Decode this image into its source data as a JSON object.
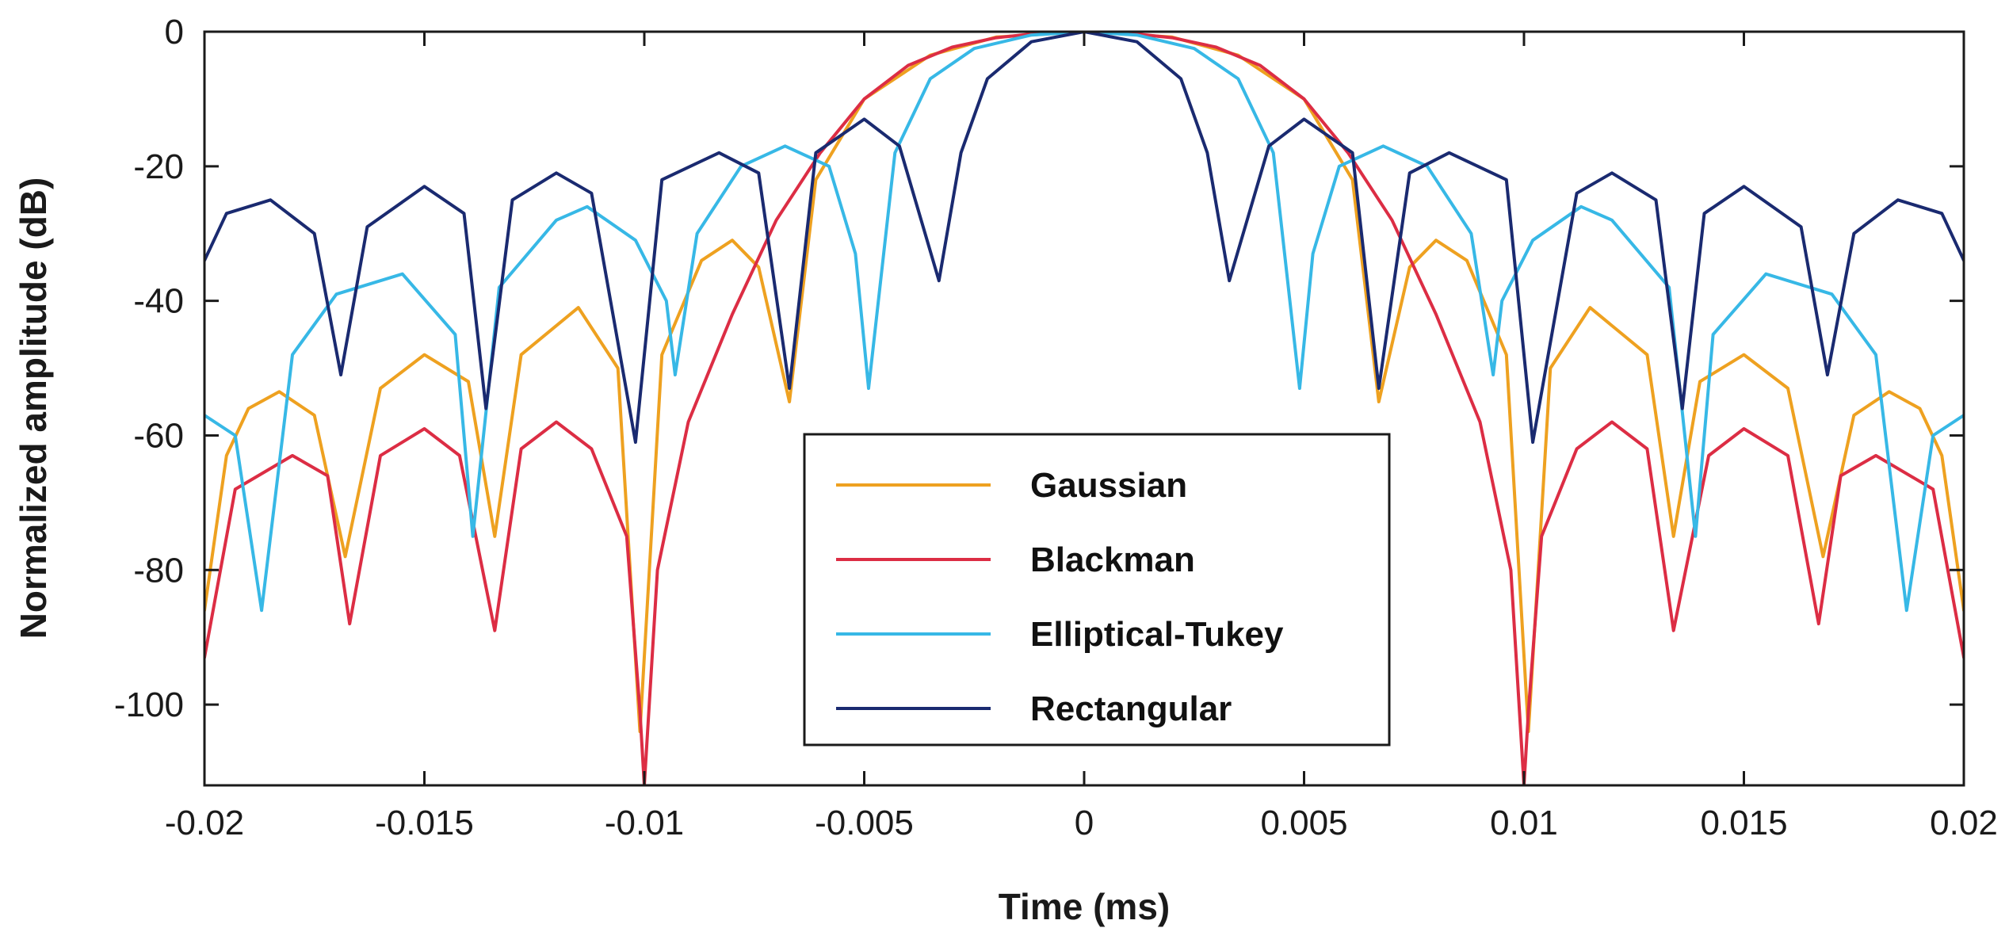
{
  "chart_data": {
    "type": "line",
    "title": "",
    "xlabel": "Time (ms)",
    "ylabel": "Normalized amplitude (dB)",
    "xlim": [
      -0.02,
      0.02
    ],
    "ylim": [
      -112,
      0
    ],
    "xticks": [
      -0.02,
      -0.015,
      -0.01,
      -0.005,
      0,
      0.005,
      0.01,
      0.015,
      0.02
    ],
    "xtick_labels": [
      "-0.02",
      "-0.015",
      "-0.01",
      "-0.005",
      "0",
      "0.005",
      "0.01",
      "0.015",
      "0.02"
    ],
    "yticks": [
      0,
      -20,
      -40,
      -60,
      -80,
      -100
    ],
    "ytick_labels": [
      "0",
      "-20",
      "-40",
      "-60",
      "-80",
      "-100"
    ],
    "grid": false,
    "legend_position": "lower-center",
    "series": [
      {
        "name": "Gaussian",
        "color": "#EEA120",
        "points": [
          [
            -0.02,
            -86
          ],
          [
            -0.0195,
            -63
          ],
          [
            -0.019,
            -56
          ],
          [
            -0.0183,
            -53.5
          ],
          [
            -0.0175,
            -57
          ],
          [
            -0.0168,
            -78
          ],
          [
            -0.016,
            -53
          ],
          [
            -0.015,
            -48
          ],
          [
            -0.014,
            -52
          ],
          [
            -0.0134,
            -75
          ],
          [
            -0.0128,
            -48
          ],
          [
            -0.0115,
            -41
          ],
          [
            -0.0106,
            -50
          ],
          [
            -0.0101,
            -104
          ],
          [
            -0.0096,
            -48
          ],
          [
            -0.0087,
            -34
          ],
          [
            -0.008,
            -31
          ],
          [
            -0.0074,
            -35
          ],
          [
            -0.0067,
            -55
          ],
          [
            -0.0061,
            -22
          ],
          [
            -0.005,
            -10
          ],
          [
            -0.0035,
            -3.5
          ],
          [
            -0.002,
            -0.8
          ],
          [
            0,
            0
          ],
          [
            0.002,
            -0.8
          ],
          [
            0.0035,
            -3.5
          ],
          [
            0.005,
            -10
          ],
          [
            0.0061,
            -22
          ],
          [
            0.0067,
            -55
          ],
          [
            0.0074,
            -35
          ],
          [
            0.008,
            -31
          ],
          [
            0.0087,
            -34
          ],
          [
            0.0096,
            -48
          ],
          [
            0.0101,
            -104
          ],
          [
            0.0106,
            -50
          ],
          [
            0.0115,
            -41
          ],
          [
            0.0128,
            -48
          ],
          [
            0.0134,
            -75
          ],
          [
            0.014,
            -52
          ],
          [
            0.015,
            -48
          ],
          [
            0.016,
            -53
          ],
          [
            0.0168,
            -78
          ],
          [
            0.0175,
            -57
          ],
          [
            0.0183,
            -53.5
          ],
          [
            0.019,
            -56
          ],
          [
            0.0195,
            -63
          ],
          [
            0.02,
            -86
          ]
        ]
      },
      {
        "name": "Blackman",
        "color": "#DC2D44",
        "points": [
          [
            -0.02,
            -93
          ],
          [
            -0.0193,
            -68
          ],
          [
            -0.018,
            -63
          ],
          [
            -0.0172,
            -66
          ],
          [
            -0.0167,
            -88
          ],
          [
            -0.016,
            -63
          ],
          [
            -0.015,
            -59
          ],
          [
            -0.0142,
            -63
          ],
          [
            -0.0134,
            -89
          ],
          [
            -0.0128,
            -62
          ],
          [
            -0.012,
            -58
          ],
          [
            -0.0112,
            -62
          ],
          [
            -0.0104,
            -75
          ],
          [
            -0.0101,
            -101
          ],
          [
            -0.01,
            -112
          ],
          [
            -0.0097,
            -80
          ],
          [
            -0.009,
            -58
          ],
          [
            -0.008,
            -42
          ],
          [
            -0.007,
            -28
          ],
          [
            -0.006,
            -18
          ],
          [
            -0.005,
            -10
          ],
          [
            -0.004,
            -5
          ],
          [
            -0.003,
            -2.3
          ],
          [
            -0.002,
            -0.9
          ],
          [
            -0.001,
            -0.2
          ],
          [
            0,
            0
          ],
          [
            0.001,
            -0.2
          ],
          [
            0.002,
            -0.9
          ],
          [
            0.003,
            -2.3
          ],
          [
            0.004,
            -5
          ],
          [
            0.005,
            -10
          ],
          [
            0.006,
            -18
          ],
          [
            0.007,
            -28
          ],
          [
            0.008,
            -42
          ],
          [
            0.009,
            -58
          ],
          [
            0.0097,
            -80
          ],
          [
            0.01,
            -112
          ],
          [
            0.0101,
            -101
          ],
          [
            0.0104,
            -75
          ],
          [
            0.0112,
            -62
          ],
          [
            0.012,
            -58
          ],
          [
            0.0128,
            -62
          ],
          [
            0.0134,
            -89
          ],
          [
            0.0142,
            -63
          ],
          [
            0.015,
            -59
          ],
          [
            0.016,
            -63
          ],
          [
            0.0167,
            -88
          ],
          [
            0.0172,
            -66
          ],
          [
            0.018,
            -63
          ],
          [
            0.0193,
            -68
          ],
          [
            0.02,
            -93
          ]
        ]
      },
      {
        "name": "Elliptical-Tukey",
        "color": "#37B8E6",
        "points": [
          [
            -0.02,
            -57
          ],
          [
            -0.0193,
            -60
          ],
          [
            -0.0187,
            -86
          ],
          [
            -0.018,
            -48
          ],
          [
            -0.017,
            -39
          ],
          [
            -0.0155,
            -36
          ],
          [
            -0.0143,
            -45
          ],
          [
            -0.0139,
            -75
          ],
          [
            -0.0133,
            -38
          ],
          [
            -0.012,
            -28
          ],
          [
            -0.0113,
            -26
          ],
          [
            -0.0102,
            -31
          ],
          [
            -0.0095,
            -40
          ],
          [
            -0.0093,
            -51
          ],
          [
            -0.0088,
            -30
          ],
          [
            -0.0078,
            -20
          ],
          [
            -0.0068,
            -17
          ],
          [
            -0.0058,
            -20
          ],
          [
            -0.0052,
            -33
          ],
          [
            -0.0049,
            -53
          ],
          [
            -0.0043,
            -18
          ],
          [
            -0.0035,
            -7
          ],
          [
            -0.0025,
            -2.5
          ],
          [
            -0.0012,
            -0.5
          ],
          [
            0,
            0
          ],
          [
            0.0012,
            -0.5
          ],
          [
            0.0025,
            -2.5
          ],
          [
            0.0035,
            -7
          ],
          [
            0.0043,
            -18
          ],
          [
            0.0049,
            -53
          ],
          [
            0.0052,
            -33
          ],
          [
            0.0058,
            -20
          ],
          [
            0.0068,
            -17
          ],
          [
            0.0078,
            -20
          ],
          [
            0.0088,
            -30
          ],
          [
            0.0093,
            -51
          ],
          [
            0.0095,
            -40
          ],
          [
            0.0102,
            -31
          ],
          [
            0.0113,
            -26
          ],
          [
            0.012,
            -28
          ],
          [
            0.0133,
            -38
          ],
          [
            0.0139,
            -75
          ],
          [
            0.0143,
            -45
          ],
          [
            0.0155,
            -36
          ],
          [
            0.017,
            -39
          ],
          [
            0.018,
            -48
          ],
          [
            0.0187,
            -86
          ],
          [
            0.0193,
            -60
          ],
          [
            0.02,
            -57
          ]
        ]
      },
      {
        "name": "Rectangular",
        "color": "#1A2A70",
        "points": [
          [
            -0.02,
            -34
          ],
          [
            -0.0195,
            -27
          ],
          [
            -0.0185,
            -25
          ],
          [
            -0.0175,
            -30
          ],
          [
            -0.0169,
            -51
          ],
          [
            -0.0163,
            -29
          ],
          [
            -0.015,
            -23
          ],
          [
            -0.0141,
            -27
          ],
          [
            -0.0136,
            -56
          ],
          [
            -0.013,
            -25
          ],
          [
            -0.012,
            -21
          ],
          [
            -0.0112,
            -24
          ],
          [
            -0.0102,
            -61
          ],
          [
            -0.0096,
            -22
          ],
          [
            -0.0083,
            -18
          ],
          [
            -0.0074,
            -21
          ],
          [
            -0.0067,
            -53
          ],
          [
            -0.0061,
            -18
          ],
          [
            -0.005,
            -13
          ],
          [
            -0.0042,
            -17
          ],
          [
            -0.0033,
            -37
          ],
          [
            -0.0028,
            -18
          ],
          [
            -0.0022,
            -7
          ],
          [
            -0.0012,
            -1.5
          ],
          [
            0,
            0
          ],
          [
            0.0012,
            -1.5
          ],
          [
            0.0022,
            -7
          ],
          [
            0.0028,
            -18
          ],
          [
            0.0033,
            -37
          ],
          [
            0.0042,
            -17
          ],
          [
            0.005,
            -13
          ],
          [
            0.0061,
            -18
          ],
          [
            0.0067,
            -53
          ],
          [
            0.0074,
            -21
          ],
          [
            0.0083,
            -18
          ],
          [
            0.0096,
            -22
          ],
          [
            0.0102,
            -61
          ],
          [
            0.0112,
            -24
          ],
          [
            0.012,
            -21
          ],
          [
            0.013,
            -25
          ],
          [
            0.0136,
            -56
          ],
          [
            0.0141,
            -27
          ],
          [
            0.015,
            -23
          ],
          [
            0.0163,
            -29
          ],
          [
            0.0169,
            -51
          ],
          [
            0.0175,
            -30
          ],
          [
            0.0185,
            -25
          ],
          [
            0.0195,
            -27
          ],
          [
            0.02,
            -34
          ]
        ]
      }
    ]
  }
}
